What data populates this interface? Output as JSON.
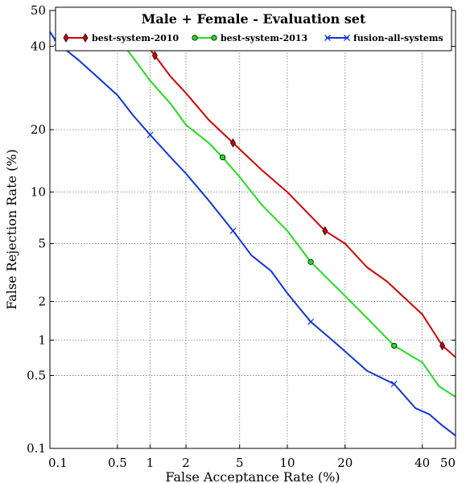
{
  "chart_data": {
    "type": "line",
    "title": "Male + Female - Evaluation set",
    "xlabel": "False Acceptance Rate (%)",
    "ylabel": "False Rejection Rate (%)",
    "xscale": "normal-deviate",
    "yscale": "normal-deviate",
    "xlim": [
      0.1,
      50
    ],
    "ylim": [
      0.1,
      50
    ],
    "grid": true,
    "legend_position": "top",
    "x_ticks": [
      0.1,
      0.5,
      1,
      2,
      5,
      10,
      20,
      40,
      50
    ],
    "x_tick_labels": [
      "0.1",
      "0.5",
      "1",
      "2",
      "5",
      "10",
      "20",
      "40",
      "50"
    ],
    "y_ticks": [
      0.1,
      0.5,
      1,
      2,
      5,
      10,
      20,
      40,
      50
    ],
    "y_tick_labels": [
      "0.1",
      "0.5",
      "1",
      "2",
      "5",
      "10",
      "20",
      "40",
      "50"
    ],
    "series": [
      {
        "name": "best-system-2010",
        "color": "#d40000",
        "marker": "diamond",
        "points": [
          [
            0.55,
            50
          ],
          [
            0.7,
            45
          ],
          [
            1.1,
            37.5
          ],
          [
            1.5,
            32
          ],
          [
            2,
            28
          ],
          [
            3,
            22
          ],
          [
            4.5,
            17.5
          ],
          [
            7,
            13
          ],
          [
            10,
            10
          ],
          [
            16,
            6
          ],
          [
            20,
            5
          ],
          [
            25,
            3.5
          ],
          [
            30,
            2.8
          ],
          [
            40,
            1.6
          ],
          [
            46,
            0.9
          ],
          [
            50,
            0.72
          ]
        ],
        "markers": [
          [
            1.1,
            37.5
          ],
          [
            4.5,
            17.5
          ],
          [
            16,
            6
          ],
          [
            46,
            0.9
          ]
        ]
      },
      {
        "name": "best-system-2013",
        "color": "#22dd22",
        "marker": "circle",
        "points": [
          [
            0.38,
            50
          ],
          [
            0.5,
            42.5
          ],
          [
            0.7,
            37
          ],
          [
            1,
            31
          ],
          [
            1.5,
            25.5
          ],
          [
            2,
            21
          ],
          [
            3,
            17.5
          ],
          [
            3.8,
            15
          ],
          [
            5,
            12
          ],
          [
            7,
            8.5
          ],
          [
            10,
            6
          ],
          [
            13.5,
            3.8
          ],
          [
            20,
            2.2
          ],
          [
            25,
            1.5
          ],
          [
            32,
            0.9
          ],
          [
            40,
            0.65
          ],
          [
            45,
            0.4
          ],
          [
            50,
            0.32
          ]
        ],
        "markers": [
          [
            0.5,
            42.5
          ],
          [
            3.8,
            15
          ],
          [
            13.5,
            3.8
          ],
          [
            32,
            0.9
          ]
        ]
      },
      {
        "name": "fusion-all-systems",
        "color": "#1133dd",
        "marker": "x",
        "points": [
          [
            0.1,
            44
          ],
          [
            0.12,
            41
          ],
          [
            0.2,
            36.5
          ],
          [
            0.3,
            32.5
          ],
          [
            0.5,
            27.5
          ],
          [
            0.7,
            23
          ],
          [
            1,
            19
          ],
          [
            1.5,
            15
          ],
          [
            2,
            12.5
          ],
          [
            3,
            9
          ],
          [
            4.5,
            6
          ],
          [
            6,
            4.2
          ],
          [
            8,
            3.3
          ],
          [
            10,
            2.3
          ],
          [
            13.5,
            1.4
          ],
          [
            18,
            0.95
          ],
          [
            25,
            0.55
          ],
          [
            32,
            0.42
          ],
          [
            38,
            0.25
          ],
          [
            42,
            0.22
          ],
          [
            46,
            0.17
          ],
          [
            50,
            0.135
          ]
        ],
        "markers": [
          [
            0.12,
            41
          ],
          [
            1,
            19
          ],
          [
            4.5,
            6
          ],
          [
            13.5,
            1.4
          ],
          [
            32,
            0.42
          ]
        ]
      }
    ]
  }
}
